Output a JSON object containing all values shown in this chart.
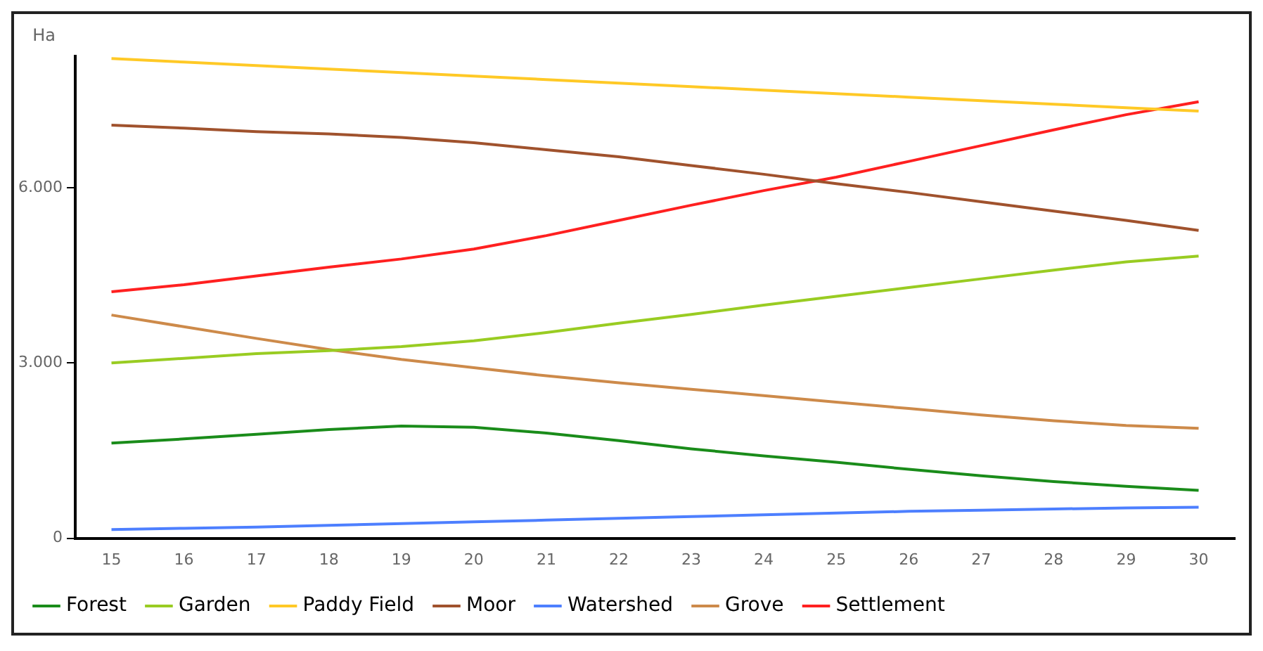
{
  "chart_data": {
    "type": "line",
    "ylabel": "Ha",
    "categories": [
      "15",
      "16",
      "17",
      "18",
      "19",
      "20",
      "21",
      "22",
      "23",
      "24",
      "25",
      "26",
      "27",
      "28",
      "29",
      "30"
    ],
    "series": [
      {
        "name": "Forest",
        "color": "#1a8c1a",
        "values": [
          1630,
          1700,
          1780,
          1860,
          1920,
          1900,
          1800,
          1670,
          1530,
          1410,
          1300,
          1180,
          1070,
          970,
          890,
          820
        ]
      },
      {
        "name": "Garden",
        "color": "#99cc22",
        "values": [
          3000,
          3080,
          3160,
          3210,
          3280,
          3380,
          3520,
          3680,
          3830,
          3990,
          4140,
          4290,
          4440,
          4590,
          4730,
          4830
        ]
      },
      {
        "name": "Paddy Field",
        "color": "#ffc926",
        "values": [
          8210,
          8150,
          8090,
          8030,
          7970,
          7910,
          7850,
          7790,
          7730,
          7670,
          7610,
          7550,
          7490,
          7430,
          7370,
          7310
        ]
      },
      {
        "name": "Moor",
        "color": "#a0522d",
        "values": [
          7070,
          7020,
          6960,
          6920,
          6860,
          6770,
          6650,
          6530,
          6380,
          6230,
          6070,
          5920,
          5760,
          5600,
          5440,
          5270
        ]
      },
      {
        "name": "Watershed",
        "color": "#4d7fff",
        "values": [
          150,
          170,
          190,
          220,
          250,
          280,
          310,
          340,
          370,
          400,
          430,
          460,
          480,
          500,
          520,
          530
        ]
      },
      {
        "name": "Grove",
        "color": "#cd8a4a",
        "values": [
          3820,
          3620,
          3420,
          3230,
          3060,
          2920,
          2780,
          2660,
          2550,
          2440,
          2330,
          2220,
          2110,
          2010,
          1930,
          1880
        ]
      },
      {
        "name": "Settlement",
        "color": "#ff2020",
        "values": [
          4220,
          4340,
          4490,
          4640,
          4780,
          4950,
          5180,
          5440,
          5700,
          5950,
          6180,
          6450,
          6720,
          6990,
          7250,
          7470
        ]
      }
    ],
    "ylim": [
      0,
      8250
    ],
    "yticks": [
      {
        "value": 0,
        "label": "0"
      },
      {
        "value": 3000,
        "label": "3.000"
      },
      {
        "value": 6000,
        "label": "6.000"
      }
    ],
    "grid": false,
    "legend": "bottom",
    "marker": "none",
    "line_style": "solid"
  }
}
